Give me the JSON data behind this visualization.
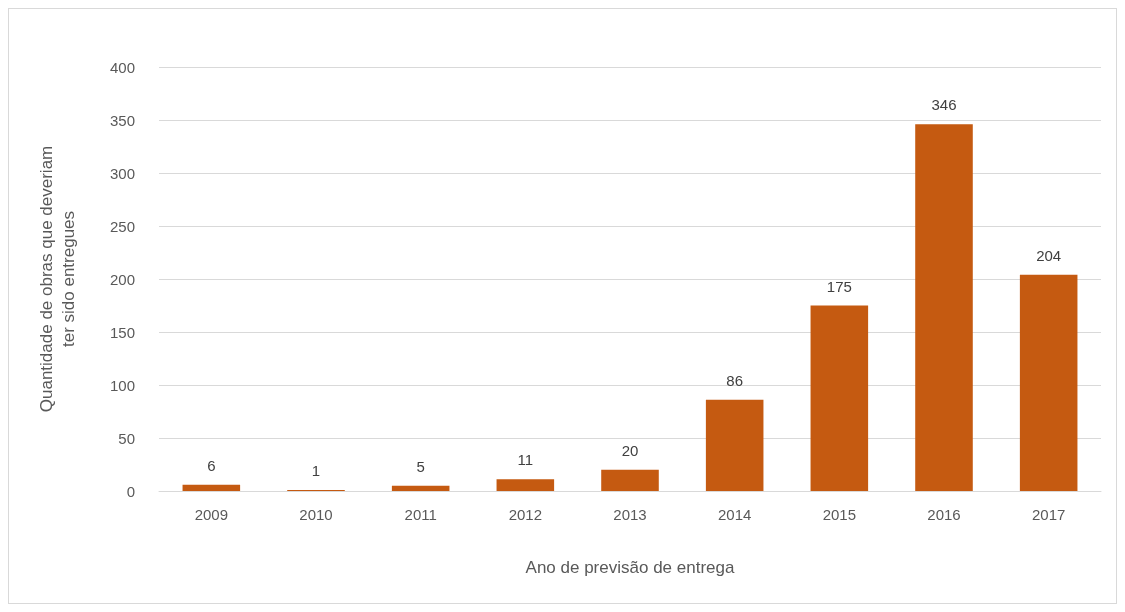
{
  "chart_data": {
    "type": "bar",
    "xlabel": "Ano de previsão de entrega",
    "ylabel": "Quantidade de obras que deveriam ter sido entregues",
    "categories": [
      "2009",
      "2010",
      "2011",
      "2012",
      "2013",
      "2014",
      "2015",
      "2016",
      "2017"
    ],
    "values": [
      6,
      1,
      5,
      11,
      20,
      86,
      175,
      346,
      204
    ],
    "color": "#c55a11",
    "ylim": [
      0,
      400
    ],
    "yticks": [
      0,
      50,
      100,
      150,
      200,
      250,
      300,
      350,
      400
    ],
    "grid": "y",
    "data_labels": true
  }
}
